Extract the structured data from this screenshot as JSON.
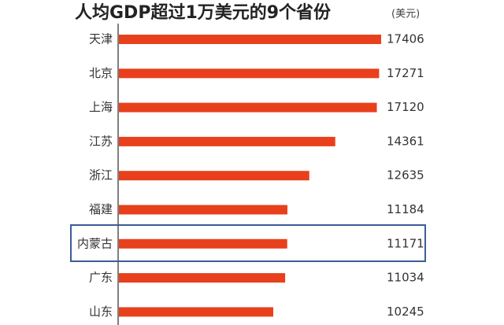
{
  "chart_data": {
    "type": "barh",
    "title": "人均GDP超过1万美元的9个省份",
    "unit": "(美元)",
    "categories": [
      "天津",
      "北京",
      "上海",
      "江苏",
      "浙江",
      "福建",
      "内蒙古",
      "广东",
      "山东"
    ],
    "values": [
      17406,
      17271,
      17120,
      14361,
      12635,
      11184,
      11171,
      11034,
      10245
    ],
    "color": "#e8401c"
  }
}
